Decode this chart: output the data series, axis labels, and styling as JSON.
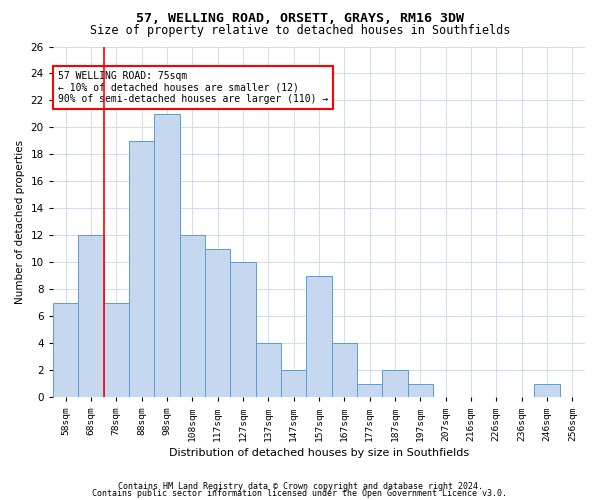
{
  "title1": "57, WELLING ROAD, ORSETT, GRAYS, RM16 3DW",
  "title2": "Size of property relative to detached houses in Southfields",
  "xlabel": "Distribution of detached houses by size in Southfields",
  "ylabel": "Number of detached properties",
  "categories": [
    "58sqm",
    "68sqm",
    "78sqm",
    "88sqm",
    "98sqm",
    "108sqm",
    "117sqm",
    "127sqm",
    "137sqm",
    "147sqm",
    "157sqm",
    "167sqm",
    "177sqm",
    "187sqm",
    "197sqm",
    "207sqm",
    "216sqm",
    "226sqm",
    "236sqm",
    "246sqm",
    "256sqm"
  ],
  "values": [
    7,
    12,
    7,
    19,
    21,
    12,
    11,
    10,
    4,
    2,
    9,
    4,
    1,
    2,
    1,
    0,
    0,
    0,
    0,
    1,
    0
  ],
  "bar_color": "#c5d8f0",
  "bar_edge_color": "#5b9bd5",
  "red_line_x": 1.5,
  "annotation_title": "57 WELLING ROAD: 75sqm",
  "annotation_line1": "← 10% of detached houses are smaller (12)",
  "annotation_line2": "90% of semi-detached houses are larger (110) →",
  "ylim": [
    0,
    26
  ],
  "yticks": [
    0,
    2,
    4,
    6,
    8,
    10,
    12,
    14,
    16,
    18,
    20,
    22,
    24,
    26
  ],
  "footnote1": "Contains HM Land Registry data © Crown copyright and database right 2024.",
  "footnote2": "Contains public sector information licensed under the Open Government Licence v3.0.",
  "background_color": "#ffffff",
  "grid_color": "#c8d8ec"
}
